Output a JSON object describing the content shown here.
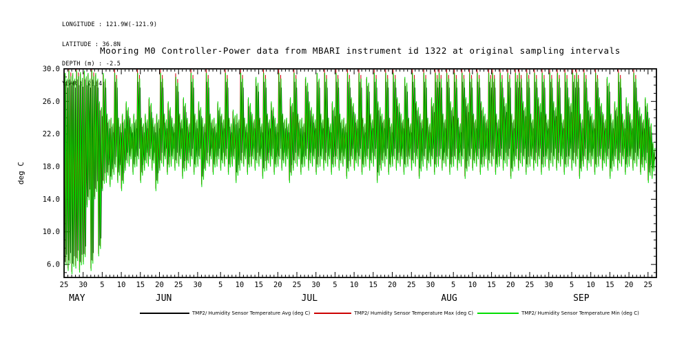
{
  "header": {
    "longitude": "LONGITUDE : 121.9W(-121.9)",
    "latitude": "LATITUDE : 36.8N",
    "depth": "DEPTH (m) : -2.5",
    "year": "YEAR : 2004"
  },
  "chart_data": {
    "type": "line",
    "title": "Mooring M0 Controller-Power data from MBARI instrument id 1322 at original sampling intervals",
    "ylabel": "deg C",
    "ylim": [
      4.4,
      30.0
    ],
    "yticks": [
      6,
      10,
      14,
      18,
      22,
      26,
      30
    ],
    "ytick_labels": [
      "6.0",
      "10.0",
      "14.0",
      "18.0",
      "22.0",
      "26.0",
      "30.0"
    ],
    "x_range_days": [
      0,
      155.2
    ],
    "x_minor_tick_every_days": 1,
    "x_major_ticks": [
      {
        "day": 0,
        "label": "25"
      },
      {
        "day": 5,
        "label": "30"
      },
      {
        "day": 10,
        "label": "5"
      },
      {
        "day": 15,
        "label": "10"
      },
      {
        "day": 20,
        "label": "15"
      },
      {
        "day": 25,
        "label": "20"
      },
      {
        "day": 30,
        "label": "25"
      },
      {
        "day": 35,
        "label": "30"
      },
      {
        "day": 41,
        "label": "5"
      },
      {
        "day": 46,
        "label": "10"
      },
      {
        "day": 51,
        "label": "15"
      },
      {
        "day": 56,
        "label": "20"
      },
      {
        "day": 61,
        "label": "25"
      },
      {
        "day": 66,
        "label": "30"
      },
      {
        "day": 71,
        "label": "5"
      },
      {
        "day": 76,
        "label": "10"
      },
      {
        "day": 81,
        "label": "15"
      },
      {
        "day": 86,
        "label": "20"
      },
      {
        "day": 91,
        "label": "25"
      },
      {
        "day": 96,
        "label": "30"
      },
      {
        "day": 102,
        "label": "5"
      },
      {
        "day": 107,
        "label": "10"
      },
      {
        "day": 112,
        "label": "15"
      },
      {
        "day": 117,
        "label": "20"
      },
      {
        "day": 122,
        "label": "25"
      },
      {
        "day": 127,
        "label": "30"
      },
      {
        "day": 133,
        "label": "5"
      },
      {
        "day": 138,
        "label": "10"
      },
      {
        "day": 143,
        "label": "15"
      },
      {
        "day": 148,
        "label": "20"
      },
      {
        "day": 153,
        "label": "25"
      }
    ],
    "month_labels": [
      {
        "day": 3.4,
        "label": "MAY"
      },
      {
        "day": 26.1,
        "label": "JUN"
      },
      {
        "day": 64.3,
        "label": "JUL"
      },
      {
        "day": 100.9,
        "label": "AUG"
      },
      {
        "day": 135.5,
        "label": "SEP"
      }
    ],
    "series": [
      {
        "name": "TMP2/ Humidity Sensor Temperature Avg (deg C)",
        "color": "#000000",
        "role": "avg"
      },
      {
        "name": "TMP2/ Humidity Sensor Temperature Max (deg C)",
        "color": "#cc0000",
        "role": "max"
      },
      {
        "name": "TMP2/ Humidity Sensor Temperature Min (deg C)",
        "color": "#00dd00",
        "role": "min"
      }
    ],
    "daily_envelope": {
      "description": "Per-day low/high (deg C) of the dense oscillating trace; day 0 = first x tick (Apr 25, YEAR 2004 shown on plot)",
      "low": [
        5.0,
        5.2,
        4.8,
        5.5,
        5.0,
        6.0,
        13.0,
        5.2,
        14.0,
        7.0,
        15.0,
        16.0,
        15.5,
        17.0,
        16.0,
        15.0,
        17.5,
        18.0,
        17.0,
        18.0,
        16.0,
        17.5,
        18.0,
        17.5,
        15.0,
        17.5,
        18.0,
        17.0,
        18.0,
        17.5,
        18.0,
        16.5,
        17.5,
        18.0,
        17.0,
        18.0,
        15.5,
        17.5,
        18.0,
        17.0,
        18.0,
        17.5,
        18.0,
        17.0,
        18.0,
        16.0,
        17.5,
        18.0,
        17.0,
        18.0,
        17.5,
        18.0,
        16.5,
        17.5,
        18.0,
        17.0,
        18.0,
        17.5,
        18.0,
        16.0,
        17.5,
        18.0,
        17.0,
        18.0,
        17.5,
        18.0,
        17.0,
        18.0,
        17.5,
        18.0,
        17.0,
        18.0,
        17.5,
        18.0,
        16.5,
        18.0,
        17.5,
        18.0,
        17.0,
        18.0,
        17.5,
        18.0,
        16.0,
        17.5,
        18.0,
        17.0,
        18.0,
        17.5,
        18.0,
        17.0,
        18.0,
        17.5,
        18.0,
        16.5,
        18.0,
        17.5,
        18.0,
        17.0,
        18.0,
        17.5,
        18.0,
        17.0,
        18.0,
        17.5,
        18.0,
        16.5,
        18.0,
        17.5,
        18.0,
        17.0,
        18.0,
        17.5,
        18.0,
        17.0,
        18.0,
        17.5,
        18.0,
        16.5,
        18.0,
        17.5,
        18.0,
        17.0,
        18.0,
        17.5,
        18.0,
        17.0,
        18.0,
        17.5,
        18.0,
        17.5,
        18.0,
        17.0,
        18.0,
        17.5,
        18.0,
        16.5,
        18.0,
        17.5,
        18.0,
        17.0,
        18.0,
        17.5,
        18.0,
        16.5,
        18.0,
        17.5,
        18.0,
        17.0,
        18.0,
        17.5,
        18.0,
        17.0,
        17.5,
        16.0,
        16.5
      ],
      "high": [
        29.5,
        29.8,
        29.5,
        29.8,
        29.6,
        29.8,
        29.5,
        29.8,
        29.5,
        26.0,
        29.5,
        24.5,
        24.0,
        29.5,
        24.0,
        24.5,
        26.0,
        24.0,
        24.5,
        29.5,
        24.0,
        24.5,
        26.5,
        24.0,
        24.5,
        29.5,
        24.5,
        26.0,
        24.0,
        29.0,
        24.5,
        26.5,
        24.0,
        29.5,
        24.5,
        26.0,
        24.0,
        29.5,
        24.5,
        24.0,
        26.0,
        24.5,
        29.5,
        24.0,
        25.0,
        24.5,
        29.5,
        24.0,
        26.5,
        24.5,
        29.0,
        24.0,
        29.5,
        24.5,
        26.0,
        24.0,
        29.5,
        24.5,
        24.0,
        26.5,
        29.5,
        24.5,
        24.0,
        29.0,
        26.0,
        24.5,
        29.5,
        24.5,
        29.5,
        24.0,
        26.0,
        29.5,
        24.5,
        24.0,
        29.5,
        26.5,
        24.5,
        29.5,
        24.0,
        29.0,
        24.5,
        29.5,
        26.0,
        24.5,
        29.5,
        24.0,
        29.5,
        26.5,
        24.5,
        29.0,
        24.0,
        29.5,
        26.0,
        24.5,
        29.5,
        24.0,
        26.5,
        29.5,
        29.5,
        24.5,
        29.5,
        26.0,
        29.5,
        24.0,
        29.5,
        26.5,
        29.5,
        24.5,
        29.5,
        26.0,
        24.5,
        29.5,
        29.5,
        24.5,
        29.5,
        26.5,
        29.5,
        24.5,
        29.5,
        29.5,
        26.0,
        29.5,
        24.5,
        29.5,
        26.5,
        29.5,
        24.5,
        29.5,
        26.0,
        29.5,
        24.5,
        29.5,
        26.5,
        29.5,
        29.5,
        24.5,
        29.5,
        26.0,
        24.5,
        29.5,
        26.5,
        24.5,
        29.0,
        24.5,
        26.0,
        29.5,
        24.5,
        26.5,
        24.5,
        29.5,
        26.0,
        24.5,
        26.5,
        24.0,
        21.0
      ]
    },
    "max_peak_days": [
      1,
      3,
      7,
      13,
      19,
      25,
      29,
      33,
      37,
      42,
      46,
      52,
      56,
      60,
      68,
      71,
      74,
      77,
      81,
      84,
      86,
      91,
      94,
      97,
      98,
      100,
      102,
      104,
      106,
      108,
      111,
      112,
      114,
      116,
      118,
      119,
      121,
      123,
      125,
      127,
      129,
      131,
      133,
      134,
      136,
      139,
      145,
      149
    ],
    "max_peak_offset": 0.45,
    "legend_position": "bottom"
  }
}
